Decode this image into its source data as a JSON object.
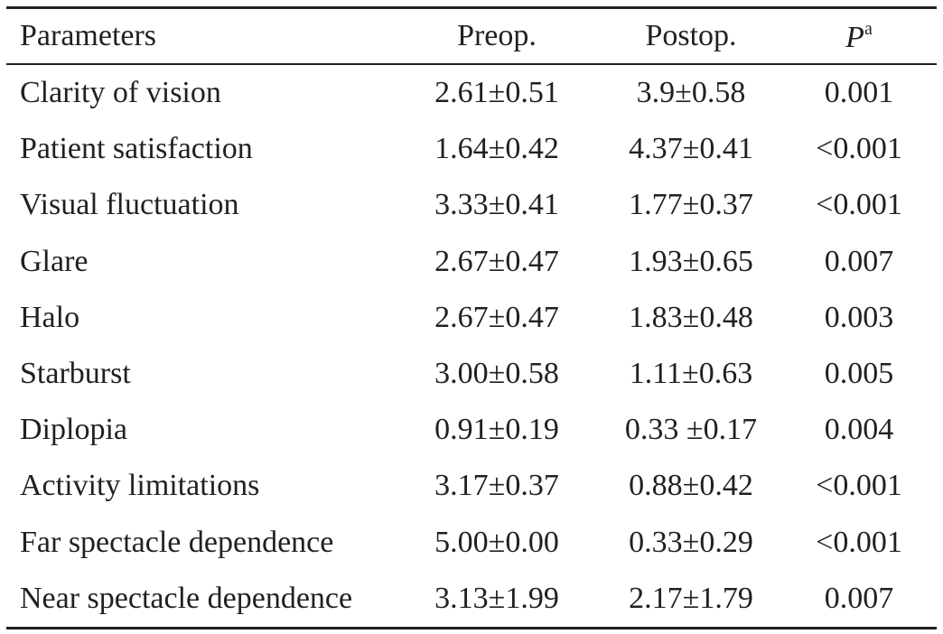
{
  "table": {
    "headers": {
      "parameters": "Parameters",
      "preop": "Preop.",
      "postop": "Postop.",
      "p_letter": "P",
      "p_superscript": "a"
    },
    "rows": [
      {
        "parameter": "Clarity of vision",
        "preop": "2.61±0.51",
        "postop": "3.9±0.58",
        "p": "0.001"
      },
      {
        "parameter": "Patient satisfaction",
        "preop": "1.64±0.42",
        "postop": "4.37±0.41",
        "p": "<0.001"
      },
      {
        "parameter": "Visual fluctuation",
        "preop": "3.33±0.41",
        "postop": "1.77±0.37",
        "p": "<0.001"
      },
      {
        "parameter": "Glare",
        "preop": "2.67±0.47",
        "postop": "1.93±0.65",
        "p": "0.007"
      },
      {
        "parameter": "Halo",
        "preop": "2.67±0.47",
        "postop": "1.83±0.48",
        "p": "0.003"
      },
      {
        "parameter": "Starburst",
        "preop": "3.00±0.58",
        "postop": "1.11±0.63",
        "p": "0.005"
      },
      {
        "parameter": "Diplopia",
        "preop": "0.91±0.19",
        "postop": "0.33 ±0.17",
        "p": "0.004"
      },
      {
        "parameter": "Activity limitations",
        "preop": "3.17±0.37",
        "postop": "0.88±0.42",
        "p": "<0.001"
      },
      {
        "parameter": "Far spectacle dependence",
        "preop": "5.00±0.00",
        "postop": "0.33±0.29",
        "p": "<0.001"
      },
      {
        "parameter": "Near spectacle dependence",
        "preop": "3.13±1.99",
        "postop": "2.17±1.79",
        "p": "0.007"
      }
    ]
  }
}
